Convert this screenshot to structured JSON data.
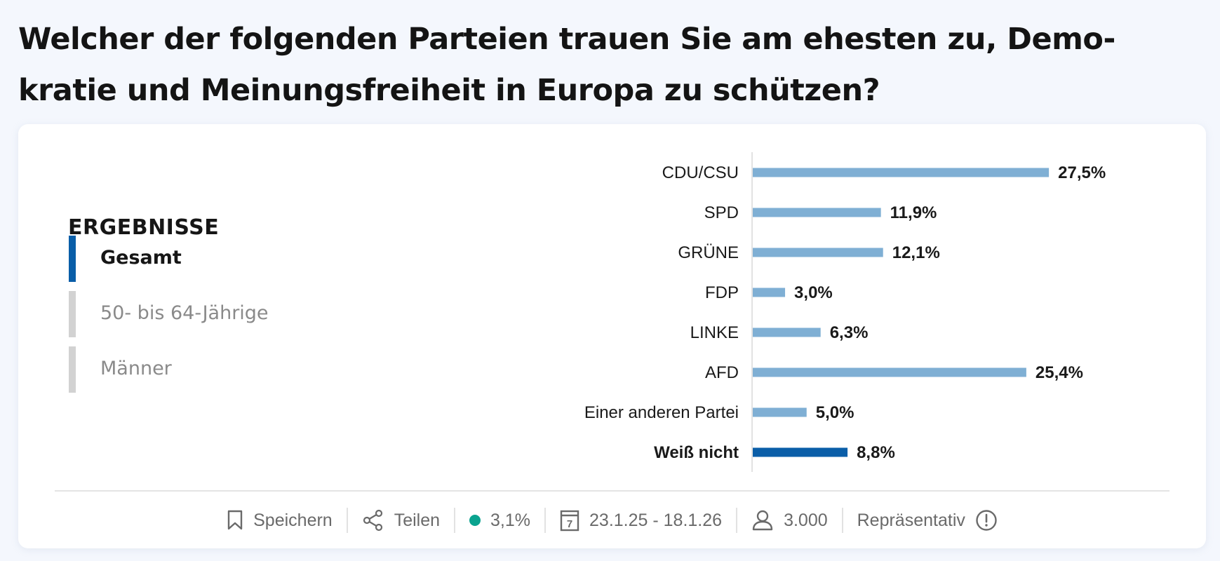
{
  "title": "Welcher der folgenden Parteien trauen Sie am ehesten zu, Demo-kratie und Meinungsfreiheit in Europa zu schützen?",
  "results": {
    "heading": "ERGEBNISSE",
    "tabs": [
      {
        "label": "Gesamt",
        "active": true
      },
      {
        "label": "50- bis 64-Jährige",
        "active": false
      },
      {
        "label": "Männer",
        "active": false
      }
    ]
  },
  "colors": {
    "bar": "#7fafd4",
    "bar_highlight": "#0a5ea8",
    "active_tab": "#0a5ea8",
    "inactive_tab": "#d2d2d2",
    "status_dot": "#0aa38f"
  },
  "chart_data": {
    "type": "bar",
    "orientation": "horizontal",
    "title": "Welcher der folgenden Parteien trauen Sie am ehesten zu, Demokratie und Meinungsfreiheit in Europa zu schützen?",
    "xlabel": "",
    "ylabel": "",
    "unit": "%",
    "grid": false,
    "categories": [
      "CDU/CSU",
      "SPD",
      "GRÜNE",
      "FDP",
      "LINKE",
      "AFD",
      "Einer anderen Partei",
      "Weiß nicht"
    ],
    "values": [
      27.5,
      11.9,
      12.1,
      3.0,
      6.3,
      25.4,
      5.0,
      8.8
    ],
    "value_labels": [
      "27,5%",
      "11,9%",
      "12,1%",
      "3,0%",
      "6,3%",
      "25,4%",
      "5,0%",
      "8,8%"
    ],
    "highlighted": [
      "Weiß nicht"
    ]
  },
  "footer": {
    "save_label": "Speichern",
    "share_label": "Teilen",
    "error_margin": "3,1%",
    "date_range": "23.1.25 - 18.1.26",
    "respondents": "3.000",
    "representative_label": "Repräsentativ"
  }
}
